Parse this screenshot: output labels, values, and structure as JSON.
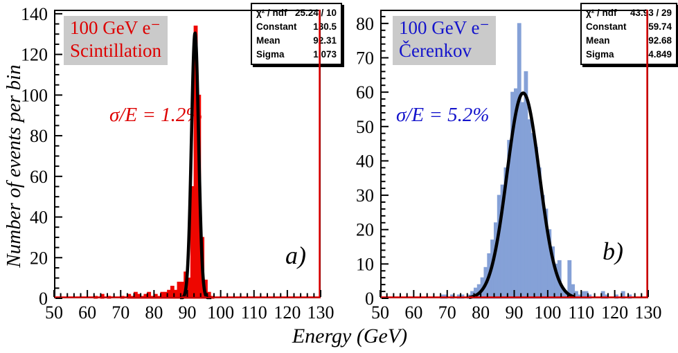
{
  "figure": {
    "xlabel": "Energy (GeV)",
    "ylabel": "Number of events per bin"
  },
  "chart_data": [
    {
      "type": "histogram",
      "panel_label": "a)",
      "title_line1": "100 GeV e⁻",
      "title_line2": "Scintillation",
      "annotation": "σ/E = 1.2%",
      "colors": {
        "hist": "#ee0600",
        "text": "#dd0000",
        "overlay_line": "#e00000",
        "fit": "#000000",
        "title_bg": "#cacaca"
      },
      "stats": {
        "chi2_label": "χ² / ndf",
        "chi2_value": "25.24 / 10",
        "constant_label": "Constant",
        "constant_value": "130.5",
        "mean_label": "Mean",
        "mean_value": "92.31",
        "sigma_label": "Sigma",
        "sigma_value": "1.073"
      },
      "xlim": [
        50,
        130
      ],
      "ylim": [
        0,
        140
      ],
      "frame_ymax": 142,
      "xticks": [
        50,
        60,
        70,
        80,
        90,
        100,
        110,
        120,
        130
      ],
      "yticks": [
        0,
        20,
        40,
        60,
        80,
        100,
        120,
        140
      ],
      "x_minor_step": 2,
      "y_minor_step": 5,
      "bin_width": 1,
      "bins": [
        [
          62,
          1
        ],
        [
          64,
          2
        ],
        [
          66,
          1
        ],
        [
          70,
          1
        ],
        [
          72,
          2
        ],
        [
          73,
          1
        ],
        [
          74,
          3
        ],
        [
          75,
          2
        ],
        [
          76,
          1
        ],
        [
          77,
          2
        ],
        [
          78,
          3
        ],
        [
          79,
          1
        ],
        [
          80,
          2
        ],
        [
          81,
          1
        ],
        [
          82,
          3
        ],
        [
          83,
          3
        ],
        [
          84,
          4
        ],
        [
          85,
          6
        ],
        [
          86,
          4
        ],
        [
          87,
          8
        ],
        [
          88,
          8
        ],
        [
          89,
          13
        ],
        [
          90,
          10
        ],
        [
          91,
          55
        ],
        [
          92,
          134
        ],
        [
          93,
          100
        ],
        [
          94,
          30
        ],
        [
          95,
          9
        ],
        [
          96,
          3
        ],
        [
          97,
          1
        ]
      ],
      "fit": {
        "shape": "gaussian",
        "constant": 130.5,
        "mean": 92.31,
        "sigma": 1.073,
        "draw_range": [
          87.8,
          97.2
        ]
      }
    },
    {
      "type": "histogram",
      "panel_label": "b)",
      "title_line1": "100 GeV e⁻",
      "title_line2": "Čerenkov",
      "annotation": "σ/E = 5.2%",
      "colors": {
        "hist": "#85a1d7",
        "text": "#1414cc",
        "overlay_line": "#e00000",
        "fit": "#000000",
        "title_bg": "#cacaca"
      },
      "stats": {
        "chi2_label": "χ² / ndf",
        "chi2_value": "43.93 / 29",
        "constant_label": "Constant",
        "constant_value": "59.74",
        "mean_label": "Mean",
        "mean_value": "92.68",
        "sigma_label": "Sigma",
        "sigma_value": "4.849"
      },
      "xlim": [
        50,
        130
      ],
      "ylim": [
        0,
        80
      ],
      "frame_ymax": 84,
      "xticks": [
        50,
        60,
        70,
        80,
        90,
        100,
        110,
        120,
        130
      ],
      "yticks": [
        0,
        10,
        20,
        30,
        40,
        50,
        60,
        70,
        80
      ],
      "x_minor_step": 2,
      "y_minor_step": 2,
      "bin_width": 1,
      "bins": [
        [
          68,
          1
        ],
        [
          69,
          1
        ],
        [
          71,
          1
        ],
        [
          73,
          1
        ],
        [
          74,
          1
        ],
        [
          76,
          1
        ],
        [
          77,
          2
        ],
        [
          78,
          3
        ],
        [
          79,
          4
        ],
        [
          80,
          6
        ],
        [
          81,
          9
        ],
        [
          82,
          13
        ],
        [
          83,
          17
        ],
        [
          84,
          22
        ],
        [
          85,
          30
        ],
        [
          86,
          33
        ],
        [
          87,
          38
        ],
        [
          88,
          46
        ],
        [
          89,
          60
        ],
        [
          90,
          61
        ],
        [
          91,
          80
        ],
        [
          92,
          57
        ],
        [
          93,
          66
        ],
        [
          94,
          52
        ],
        [
          95,
          48
        ],
        [
          96,
          44
        ],
        [
          97,
          38
        ],
        [
          98,
          30
        ],
        [
          99,
          26
        ],
        [
          100,
          20
        ],
        [
          101,
          15
        ],
        [
          102,
          10
        ],
        [
          103,
          11
        ],
        [
          104,
          3
        ],
        [
          105,
          2
        ],
        [
          106,
          11
        ],
        [
          107,
          4
        ],
        [
          108,
          2
        ],
        [
          109,
          1
        ],
        [
          110,
          2
        ],
        [
          111,
          2
        ],
        [
          112,
          1
        ],
        [
          116,
          2
        ],
        [
          117,
          1
        ],
        [
          120,
          1
        ],
        [
          122,
          2
        ],
        [
          124,
          1
        ]
      ],
      "fit": {
        "shape": "gaussian",
        "constant": 59.74,
        "mean": 92.68,
        "sigma": 4.849,
        "draw_range": [
          76.5,
          107.8
        ]
      }
    }
  ]
}
